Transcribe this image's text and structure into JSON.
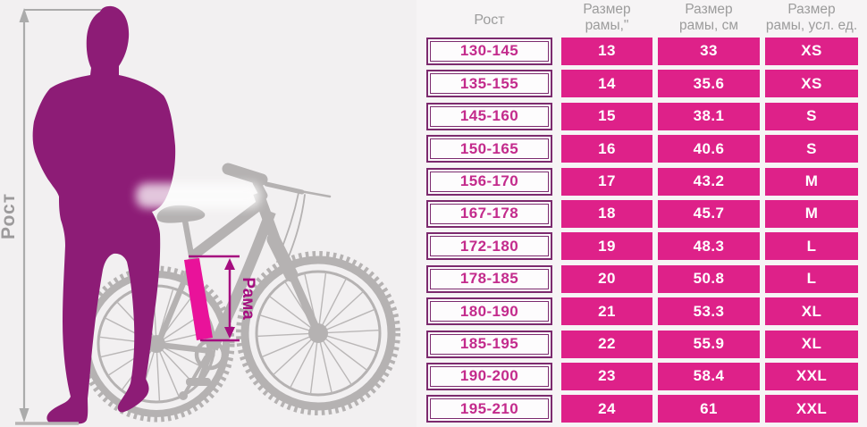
{
  "illustration": {
    "height_label": "Рост",
    "frame_label": "Рама",
    "colors": {
      "person": "#8d1c76",
      "bike": "#b5b2b2",
      "annotation": "#a50d7f",
      "frame_highlight": "#e9129a"
    }
  },
  "table": {
    "headers": {
      "height": "Рост",
      "inches": [
        "Размер",
        "рамы,\""
      ],
      "cm": [
        "Размер",
        "рамы, см"
      ],
      "units": [
        "Размер",
        "рамы, усл. ед."
      ]
    },
    "colors": {
      "cell": "#de2189",
      "border": "#7c2a6e",
      "height_text": "#c32b8c",
      "header_text": "#9c9c9c"
    },
    "rows": [
      {
        "height": "130-145",
        "inches": "13",
        "cm": "33",
        "size": "XS"
      },
      {
        "height": "135-155",
        "inches": "14",
        "cm": "35.6",
        "size": "XS"
      },
      {
        "height": "145-160",
        "inches": "15",
        "cm": "38.1",
        "size": "S"
      },
      {
        "height": "150-165",
        "inches": "16",
        "cm": "40.6",
        "size": "S"
      },
      {
        "height": "156-170",
        "inches": "17",
        "cm": "43.2",
        "size": "M"
      },
      {
        "height": "167-178",
        "inches": "18",
        "cm": "45.7",
        "size": "M"
      },
      {
        "height": "172-180",
        "inches": "19",
        "cm": "48.3",
        "size": "L"
      },
      {
        "height": "178-185",
        "inches": "20",
        "cm": "50.8",
        "size": "L"
      },
      {
        "height": "180-190",
        "inches": "21",
        "cm": "53.3",
        "size": "XL"
      },
      {
        "height": "185-195",
        "inches": "22",
        "cm": "55.9",
        "size": "XL"
      },
      {
        "height": "190-200",
        "inches": "23",
        "cm": "58.4",
        "size": "XXL"
      },
      {
        "height": "195-210",
        "inches": "24",
        "cm": "61",
        "size": "XXL"
      }
    ]
  },
  "chart_data": {
    "type": "table",
    "columns": [
      "Рост",
      "Размер рамы,\"",
      "Размер рамы, см",
      "Размер рамы, усл. ед."
    ],
    "rows": [
      [
        "130-145",
        13,
        33,
        "XS"
      ],
      [
        "135-155",
        14,
        35.6,
        "XS"
      ],
      [
        "145-160",
        15,
        38.1,
        "S"
      ],
      [
        "150-165",
        16,
        40.6,
        "S"
      ],
      [
        "156-170",
        17,
        43.2,
        "M"
      ],
      [
        "167-178",
        18,
        45.7,
        "M"
      ],
      [
        "172-180",
        19,
        48.3,
        "L"
      ],
      [
        "178-185",
        20,
        50.8,
        "L"
      ],
      [
        "180-190",
        21,
        53.3,
        "XL"
      ],
      [
        "185-195",
        22,
        55.9,
        "XL"
      ],
      [
        "190-200",
        23,
        58.4,
        "XXL"
      ],
      [
        "195-210",
        24,
        61,
        "XXL"
      ]
    ]
  }
}
